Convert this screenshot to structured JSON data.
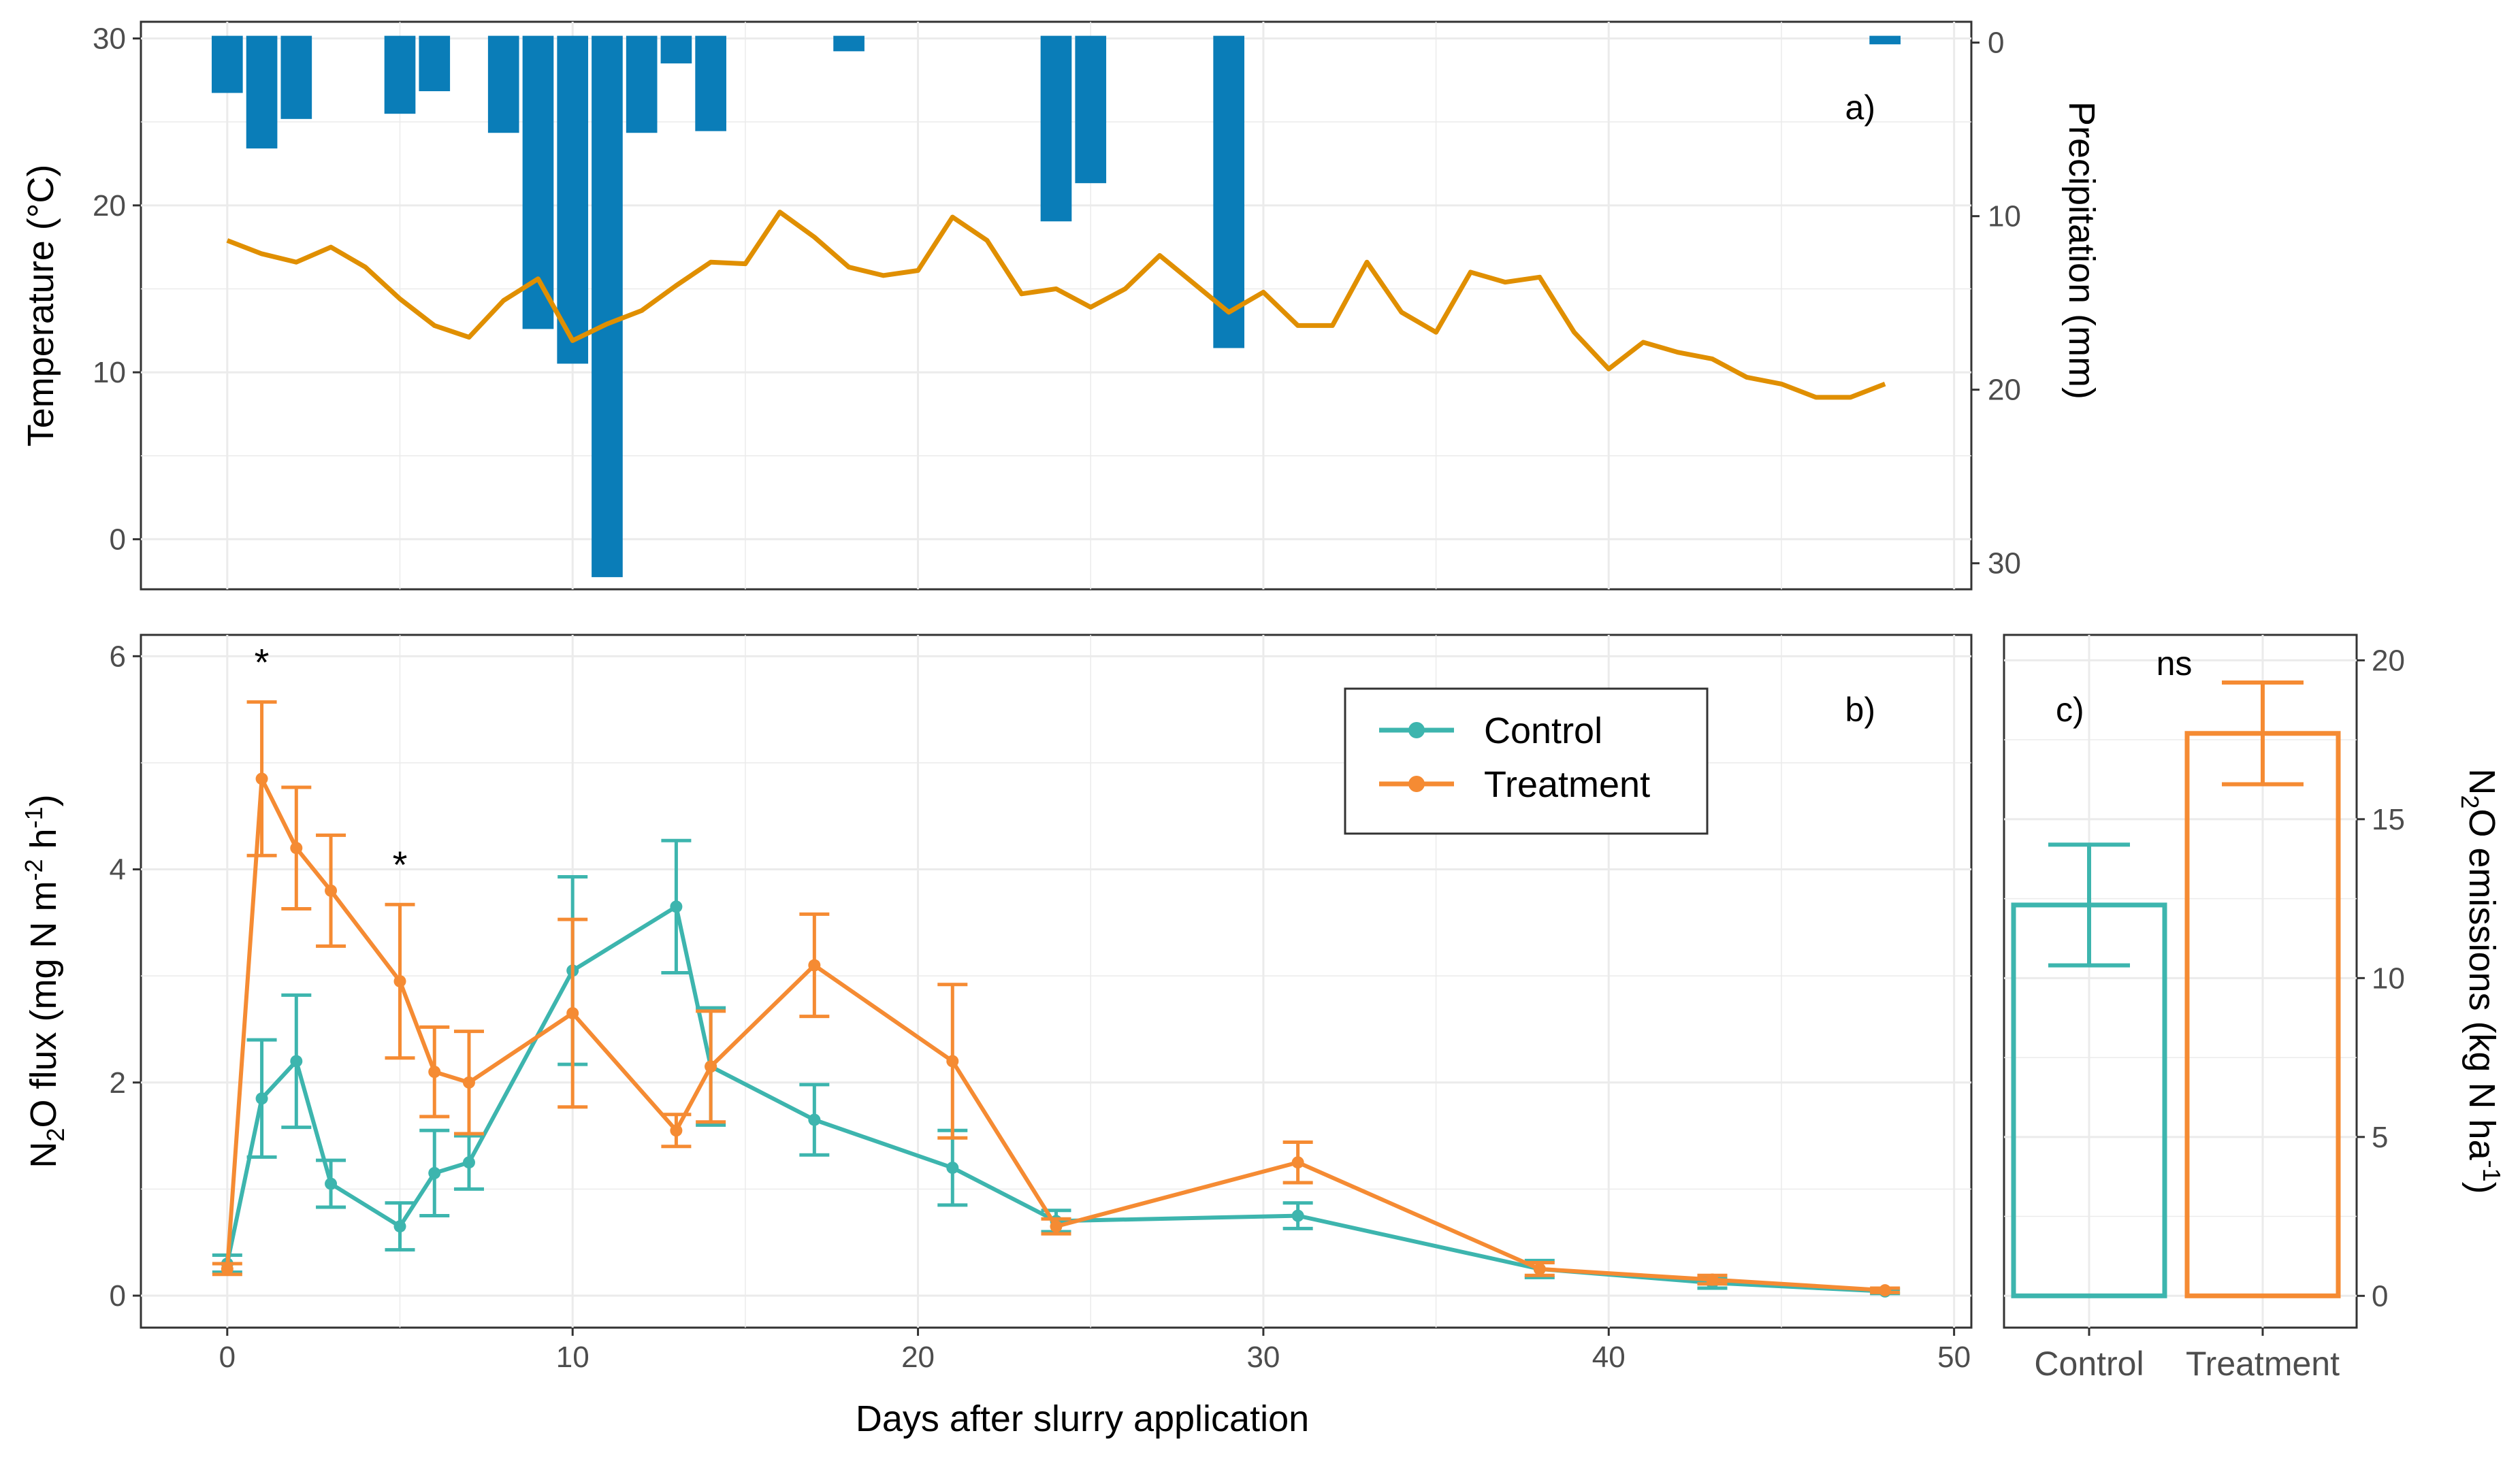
{
  "colors": {
    "temperature": "#E08F00",
    "precipitation": "#0A7DB8",
    "control": "#3DB5AE",
    "treatment": "#F58B33",
    "grid": "#EBEBEB",
    "tick_text": "#4D4D4D"
  },
  "x_axis": {
    "label": "Days after slurry application",
    "ticks": [
      0,
      10,
      20,
      30,
      40,
      50
    ],
    "range": [
      -2.5,
      50.5
    ]
  },
  "chart_data": [
    {
      "type": "line+bar",
      "panel": "a)",
      "y_left": {
        "label": "Temperature (°C)",
        "ticks": [
          0,
          10,
          20,
          30
        ],
        "range": [
          -3,
          31
        ]
      },
      "y_right": {
        "label": "Precipitation (mm)",
        "ticks": [
          0,
          10,
          20,
          30
        ],
        "range": [
          -1.2,
          31.5
        ],
        "reversed": true
      },
      "series": [
        {
          "name": "Temperature (°C)",
          "kind": "line",
          "x": [
            0,
            1,
            2,
            3,
            4,
            5,
            6,
            7,
            8,
            9,
            10,
            11,
            12,
            13,
            14,
            15,
            16,
            17,
            18,
            19,
            20,
            21,
            22,
            23,
            24,
            25,
            26,
            27,
            28,
            29,
            30,
            31,
            32,
            33,
            34,
            35,
            36,
            37,
            38,
            39,
            40,
            41,
            42,
            43,
            44,
            45,
            46,
            47,
            48
          ],
          "y": [
            17.9,
            17.1,
            16.6,
            17.5,
            16.3,
            14.4,
            12.8,
            12.1,
            14.3,
            15.6,
            11.9,
            12.9,
            13.7,
            15.2,
            16.6,
            16.5,
            19.6,
            18.1,
            16.3,
            15.8,
            16.1,
            19.3,
            17.9,
            14.7,
            15,
            13.9,
            15,
            17,
            15.3,
            13.6,
            14.8,
            12.8,
            12.8,
            16.6,
            13.6,
            12.4,
            16,
            15.4,
            15.7,
            12.4,
            10.2,
            11.8,
            11.2,
            10.8,
            9.7,
            9.3,
            8.5,
            8.5,
            9.3
          ]
        },
        {
          "name": "Precipitation (mm)",
          "kind": "bar",
          "x": [
            0,
            1,
            2,
            5,
            6,
            8,
            9,
            10,
            11,
            12,
            13,
            14,
            18,
            24,
            25,
            29,
            48
          ],
          "values": [
            2.9,
            6.1,
            4.4,
            4.1,
            2.8,
            5.2,
            16.5,
            18.5,
            30.8,
            5.2,
            1.2,
            5.1,
            0.5,
            10.3,
            8.1,
            17.6,
            0.1
          ]
        }
      ]
    },
    {
      "type": "line",
      "panel": "b)",
      "ylabel": "N2O flux (mg N m-2 h-1)",
      "ylabel_parts": {
        "n": "N",
        "sub_2": "2",
        "rest": "O flux (mg N m",
        "exp_neg2": "-2",
        "h": " h",
        "exp_neg1": "-1",
        "close": ")"
      },
      "ylim": [
        -0.3,
        6.2
      ],
      "yticks": [
        0,
        2,
        4,
        6
      ],
      "legend": {
        "position": "top-center",
        "entries": [
          "Control",
          "Treatment"
        ]
      },
      "annotations": [
        {
          "x": 1,
          "y": 6.0,
          "text": "*"
        },
        {
          "x": 5,
          "y": 4.1,
          "text": "*"
        }
      ],
      "series": [
        {
          "name": "Control",
          "x": [
            0,
            1,
            2,
            3,
            5,
            6,
            7,
            10,
            13,
            14,
            17,
            21,
            24,
            31,
            38,
            43,
            48
          ],
          "y": [
            0.3,
            1.85,
            2.2,
            1.05,
            0.65,
            1.15,
            1.25,
            3.05,
            3.65,
            2.15,
            1.65,
            1.2,
            0.7,
            0.75,
            0.25,
            0.12,
            0.04
          ],
          "err": [
            0.08,
            0.55,
            0.62,
            0.22,
            0.22,
            0.4,
            0.25,
            0.88,
            0.62,
            0.55,
            0.33,
            0.35,
            0.1,
            0.12,
            0.08,
            0.05,
            0.02
          ]
        },
        {
          "name": "Treatment",
          "x": [
            0,
            1,
            2,
            3,
            5,
            6,
            7,
            10,
            13,
            14,
            17,
            21,
            24,
            31,
            38,
            43,
            48
          ],
          "y": [
            0.25,
            4.85,
            4.2,
            3.8,
            2.95,
            2.1,
            2.0,
            2.65,
            1.55,
            2.15,
            3.1,
            2.2,
            0.65,
            1.25,
            0.25,
            0.15,
            0.05
          ],
          "err": [
            0.05,
            0.72,
            0.57,
            0.52,
            0.72,
            0.42,
            0.48,
            0.88,
            0.15,
            0.52,
            0.48,
            0.72,
            0.07,
            0.19,
            0.06,
            0.04,
            0.02
          ]
        }
      ]
    },
    {
      "type": "bar",
      "panel": "c)",
      "categories": [
        "Control",
        "Treatment"
      ],
      "values": [
        12.3,
        17.7
      ],
      "err": [
        1.9,
        1.6
      ],
      "annotation": "ns",
      "ylabel": "N2O emissions (kg N ha-1)",
      "ylabel_parts": {
        "n": "N",
        "sub_2": "2",
        "rest": "O emissions (kg N ha",
        "exp_neg1": "-1",
        "close": ")"
      },
      "ylim": [
        -1.0,
        20.8
      ],
      "yticks": [
        0,
        5,
        10,
        15,
        20
      ]
    }
  ]
}
